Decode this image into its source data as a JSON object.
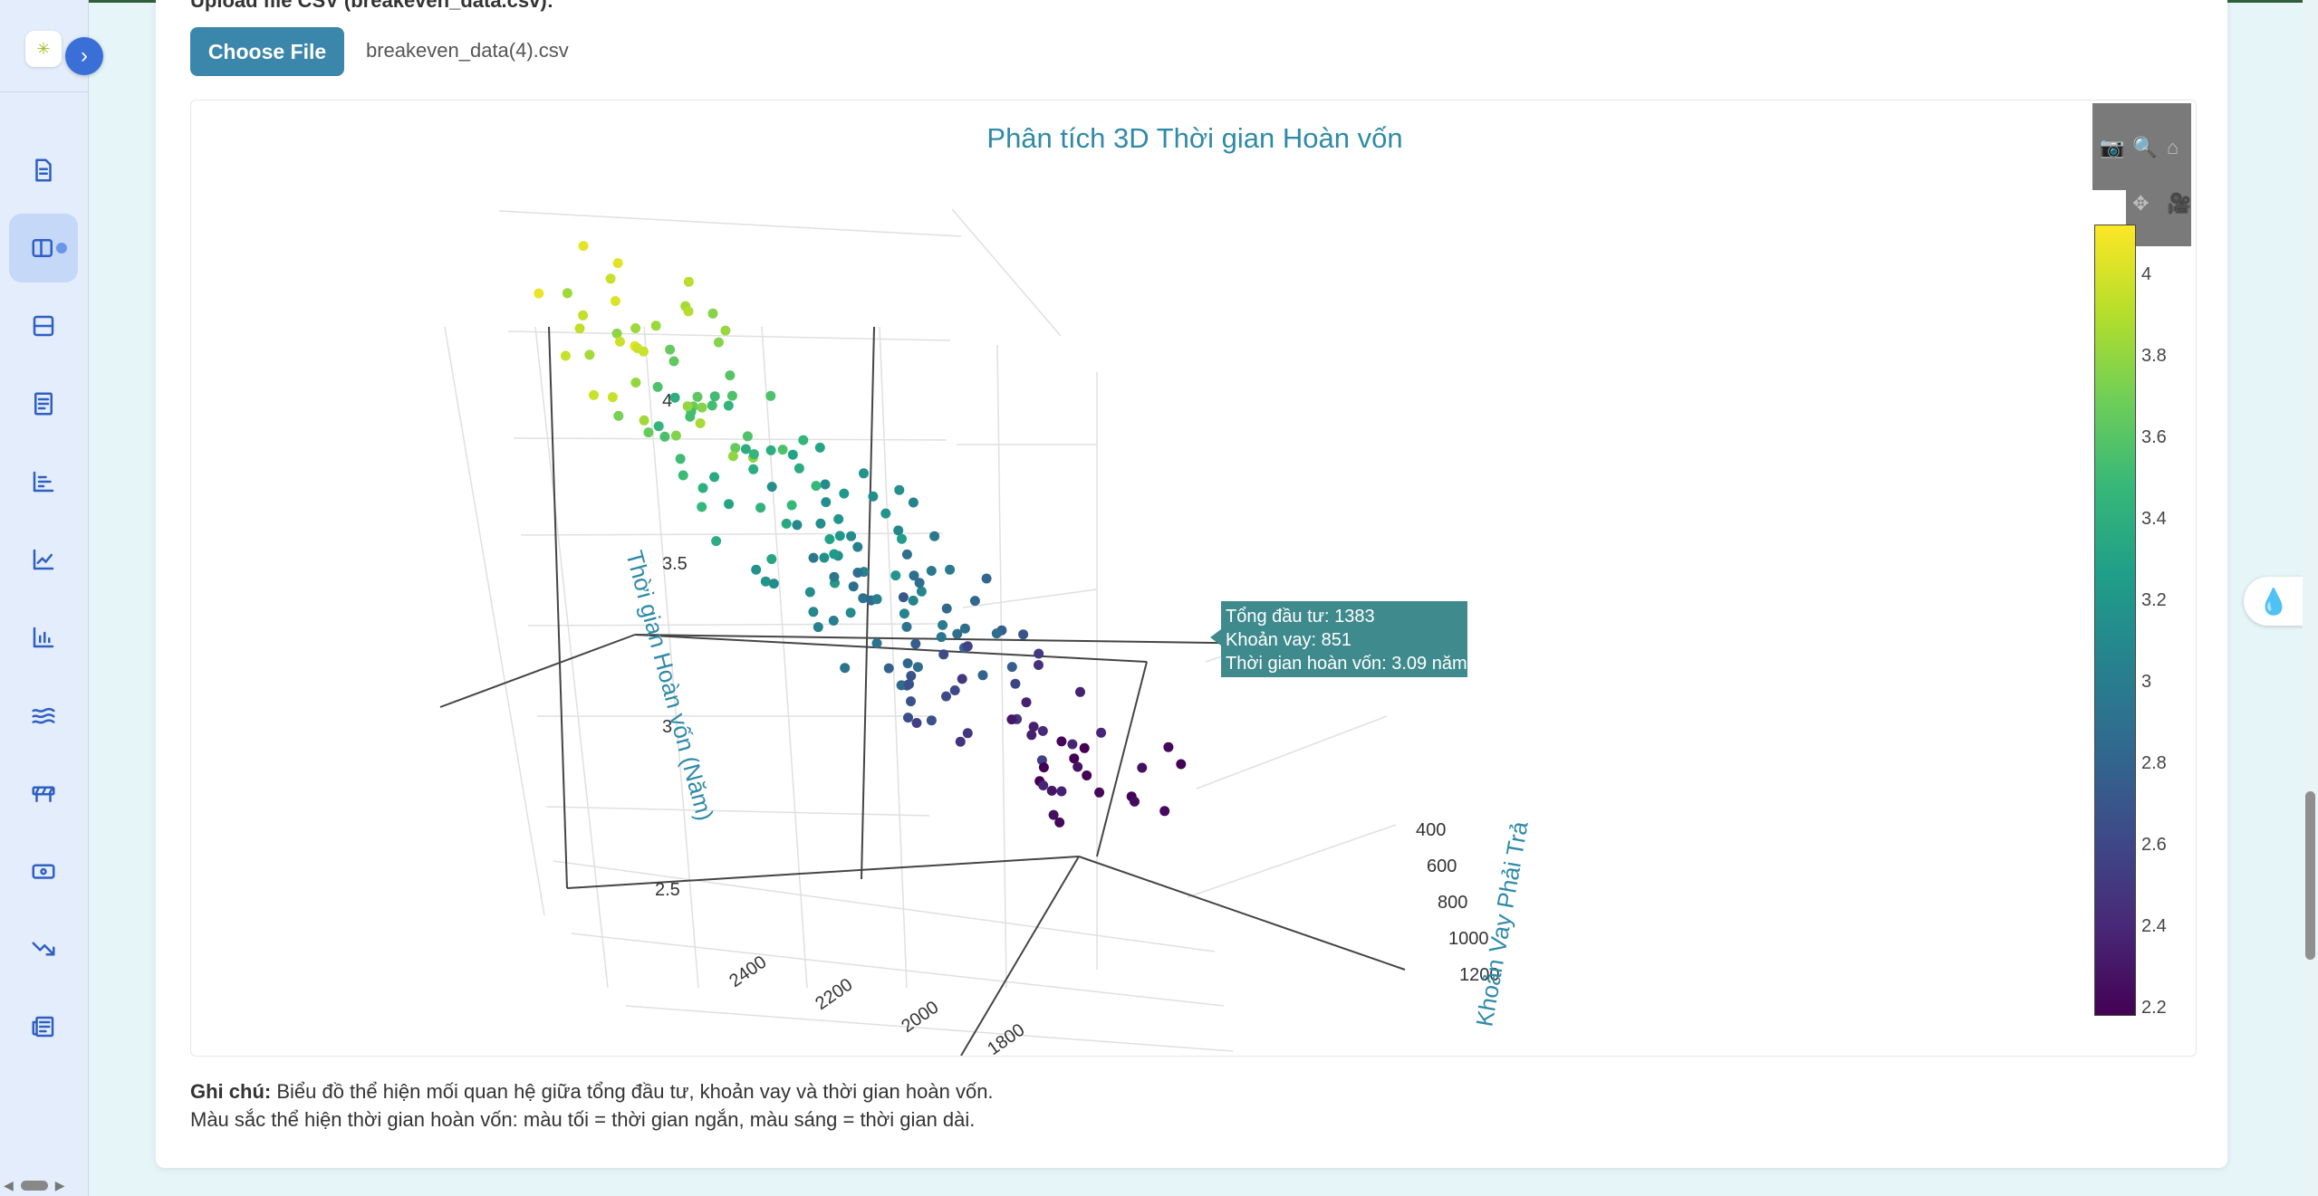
{
  "upload": {
    "label": "Upload file CSV (breakeven_data.csv):",
    "button_label": "Choose File",
    "file_name": "breakeven_data(4).csv"
  },
  "chart_data": {
    "type": "scatter",
    "title": "Phân tích 3D Thời gian Hoàn vốn",
    "zlabel": "Thời gian Hoàn vốn (Năm)",
    "ylabel": "Khoản Vay Phải Trả",
    "z_ticks": [
      "4",
      "3.5",
      "3",
      "2.5"
    ],
    "y_ticks": [
      "400",
      "600",
      "800",
      "1000",
      "1200"
    ],
    "x_ticks": [
      "2400",
      "2200",
      "2000",
      "1800"
    ],
    "colorbar_ticks": [
      "4",
      "3.8",
      "3.6",
      "3.4",
      "3.2",
      "3",
      "2.8",
      "2.6",
      "2.4",
      "2.2"
    ],
    "colorscale": [
      "#440154",
      "#482878",
      "#3e4989",
      "#31688e",
      "#26828e",
      "#1f9e89",
      "#35b779",
      "#6ece58",
      "#b5de2b",
      "#fde725"
    ],
    "zrange": [
      2.2,
      4.1
    ],
    "grid": true,
    "hover": {
      "total_investment": "Tổng đầu tư: 1383",
      "loan": "Khoản vay: 851",
      "payback": "Thời gian hoàn vốn: 3.09 năm"
    },
    "legend": "none"
  },
  "note": {
    "bold": "Ghi chú:",
    "line1": " Biểu đồ thể hiện mối quan hệ giữa tổng đầu tư, khoản vay và thời gian hoàn vốn.",
    "line2": "Màu sắc thể hiện thời gian hoàn vốn: màu tối = thời gian ngắn, màu sáng = thời gian dài."
  },
  "icons": {
    "logo": "✳",
    "expand": "›",
    "float": "💧"
  }
}
